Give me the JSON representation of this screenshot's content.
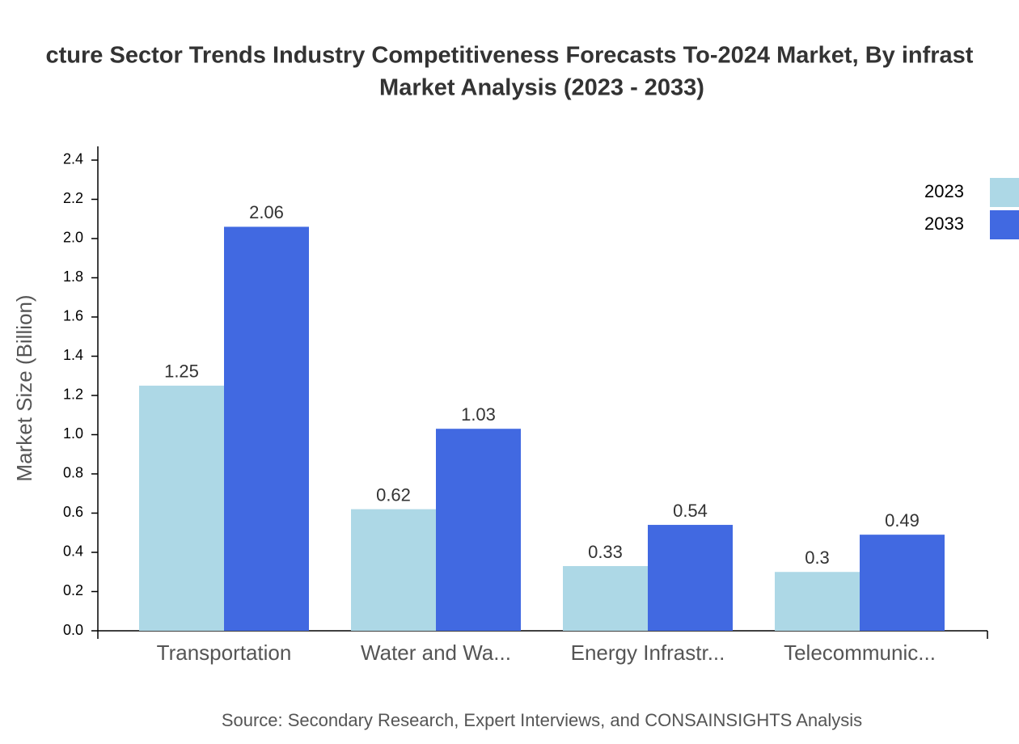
{
  "chart_data": {
    "type": "bar",
    "title": [
      "cture Sector Trends Industry Competitiveness Forecasts To-2024 Market, By infrast",
      "Market Analysis (2023 - 2033)"
    ],
    "y_label": "Market Size (Billion)",
    "source": "Source: Secondary Research, Expert Interviews, and CONSAINSIGHTS Analysis",
    "categories": [
      "Transportation",
      "Water and Wa...",
      "Energy Infrastr...",
      "Telecommunic..."
    ],
    "series": [
      {
        "name": "2023",
        "color": "#add8e6",
        "values": [
          1.25,
          0.62,
          0.33,
          0.3
        ]
      },
      {
        "name": "2033",
        "color": "#4169e1",
        "values": [
          2.06,
          1.03,
          0.54,
          0.49
        ]
      }
    ],
    "ylim": [
      0,
      2.47
    ],
    "yticks": [
      {
        "value": 0,
        "label": "0.0"
      },
      0.2,
      0.4,
      0.6,
      0.8,
      {
        "value": 1,
        "label": "1.0"
      },
      1.2,
      1.4,
      1.6,
      1.8,
      {
        "value": 2,
        "label": "2.0"
      },
      2.2,
      2.4
    ],
    "legend": "top-right"
  }
}
